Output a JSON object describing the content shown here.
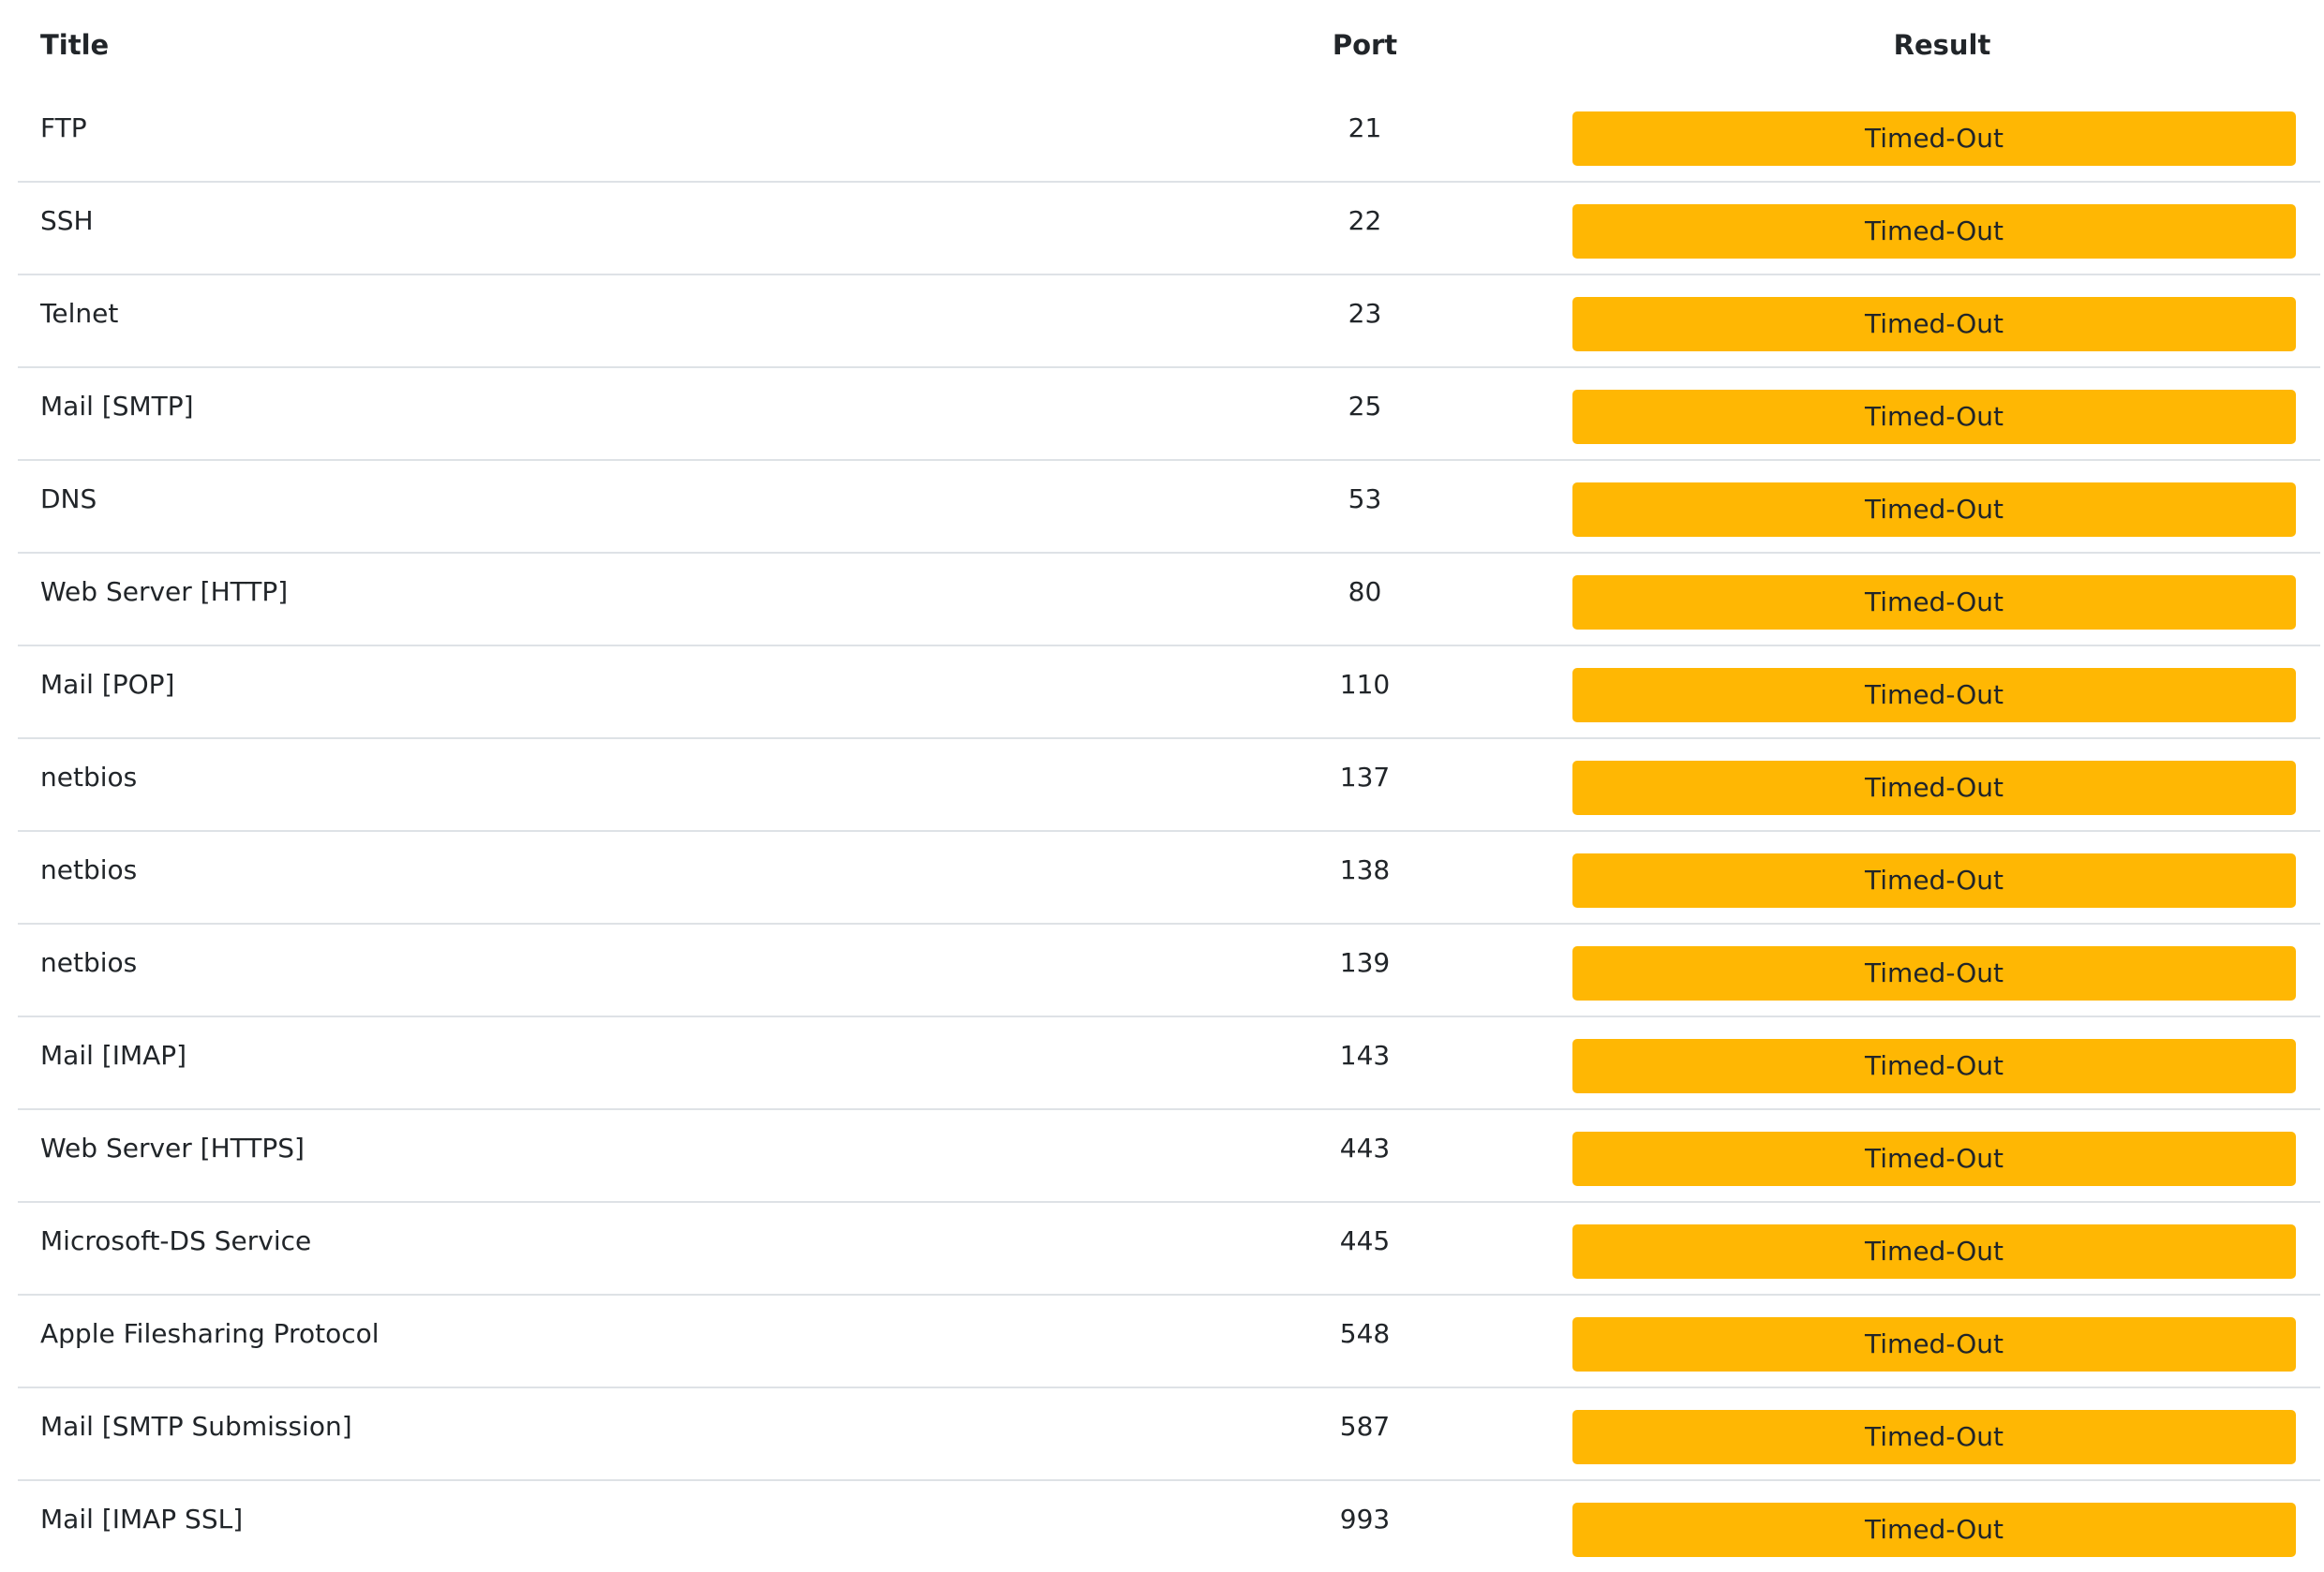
{
  "colors": {
    "timed_out_bg": "#FFB703",
    "timed_out_text": "#212529",
    "row_divider": "#DEE2E6"
  },
  "table": {
    "headers": {
      "title": "Title",
      "port": "Port",
      "result": "Result"
    },
    "rows": [
      {
        "title": "FTP",
        "port": "21",
        "result": "Timed-Out"
      },
      {
        "title": "SSH",
        "port": "22",
        "result": "Timed-Out"
      },
      {
        "title": "Telnet",
        "port": "23",
        "result": "Timed-Out"
      },
      {
        "title": "Mail [SMTP]",
        "port": "25",
        "result": "Timed-Out"
      },
      {
        "title": "DNS",
        "port": "53",
        "result": "Timed-Out"
      },
      {
        "title": "Web Server [HTTP]",
        "port": "80",
        "result": "Timed-Out"
      },
      {
        "title": "Mail [POP]",
        "port": "110",
        "result": "Timed-Out"
      },
      {
        "title": "netbios",
        "port": "137",
        "result": "Timed-Out"
      },
      {
        "title": "netbios",
        "port": "138",
        "result": "Timed-Out"
      },
      {
        "title": "netbios",
        "port": "139",
        "result": "Timed-Out"
      },
      {
        "title": "Mail [IMAP]",
        "port": "143",
        "result": "Timed-Out"
      },
      {
        "title": "Web Server [HTTPS]",
        "port": "443",
        "result": "Timed-Out"
      },
      {
        "title": "Microsoft-DS Service",
        "port": "445",
        "result": "Timed-Out"
      },
      {
        "title": "Apple Filesharing Protocol",
        "port": "548",
        "result": "Timed-Out"
      },
      {
        "title": "Mail [SMTP Submission]",
        "port": "587",
        "result": "Timed-Out"
      },
      {
        "title": "Mail [IMAP SSL]",
        "port": "993",
        "result": "Timed-Out"
      }
    ]
  }
}
